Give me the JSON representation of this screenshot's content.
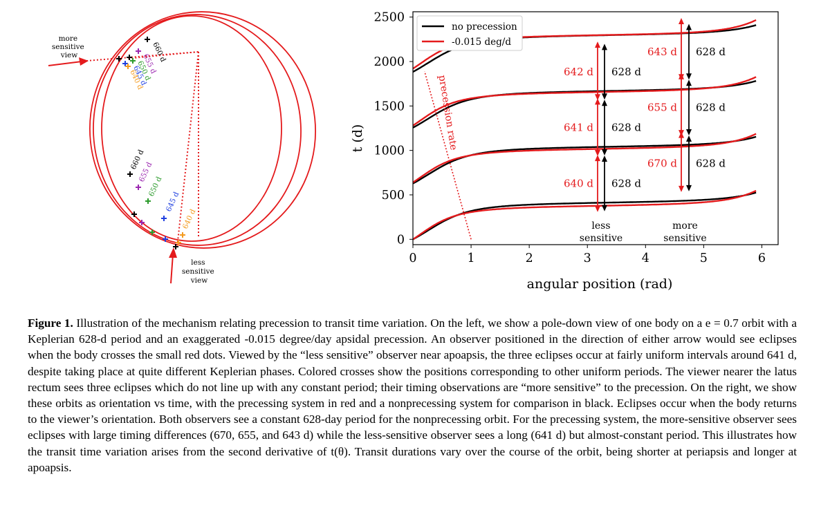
{
  "colors": {
    "red": "#e41a1c",
    "black": "#000000",
    "purple": "#9b27b0",
    "green": "#2b9b2b",
    "blue": "#1f3fe0",
    "orange": "#f39a1e"
  },
  "orbit_diagram": {
    "view_more": "more sensitive view",
    "view_more_lines": [
      "more",
      "sensitive",
      "view"
    ],
    "view_less_lines": [
      "less",
      "sensitive",
      "view"
    ],
    "upper_labels": [
      "660 d",
      "655 d",
      "650 d",
      "645 d",
      "640 d"
    ],
    "lower_labels": [
      "660 d",
      "655 d",
      "650 d",
      "645 d",
      "640 d"
    ]
  },
  "chart_data": {
    "type": "line",
    "title": "",
    "xlabel": "angular position (rad)",
    "ylabel": "t (d)",
    "xlim": [
      0,
      6.28
    ],
    "ylim": [
      -60,
      2560
    ],
    "xticks": [
      0,
      1,
      2,
      3,
      4,
      5,
      6
    ],
    "yticks": [
      0,
      500,
      1000,
      1500,
      2000,
      2500
    ],
    "legend": {
      "placement": "top-left",
      "entries": [
        {
          "name": "no precession",
          "color": "#000000"
        },
        {
          "name": "-0.015 deg/d",
          "color": "#e41a1c"
        }
      ]
    },
    "series": [
      {
        "name": "no precession",
        "color": "#000000",
        "period": 628,
        "orbit_offsets": [
          0,
          628,
          1256,
          1884
        ]
      },
      {
        "name": "-0.015 deg/d",
        "color": "#e41a1c",
        "period_base": 628,
        "precession_deg_per_day": -0.015,
        "orbit_offsets": [
          0,
          628,
          1256,
          1884
        ]
      }
    ],
    "precession_line": {
      "label": "precession rate",
      "from": [
        1.0,
        0
      ],
      "to": [
        0.2,
        1890
      ]
    },
    "less_sensitive": {
      "theta": 3.25,
      "label_lines": [
        "less",
        "sensitive"
      ],
      "red_intervals": [
        "640 d",
        "641 d",
        "642 d"
      ],
      "black_intervals": [
        "628 d",
        "628 d",
        "628 d"
      ]
    },
    "more_sensitive": {
      "theta": 4.6,
      "label_lines": [
        "more",
        "sensitive"
      ],
      "red_intervals": [
        "670 d",
        "655 d",
        "643 d"
      ],
      "black_intervals": [
        "628 d",
        "628 d",
        "628 d"
      ]
    }
  },
  "caption": {
    "label": "Figure 1.",
    "text": "Illustration of the mechanism relating precession to transit time variation. On the left, we show a pole-down view of one body on a e = 0.7 orbit with a Keplerian 628-d period and an exaggerated -0.015 degree/day apsidal precession. An observer positioned in the direction of either arrow would see eclipses when the body crosses the small red dots. Viewed by the “less sensitive” observer near apoapsis, the three eclipses occur at fairly uniform intervals around 641 d, despite taking place at quite different Keplerian phases. Colored crosses show the positions corresponding to other uniform periods. The viewer nearer the latus rectum sees three eclipses which do not line up with any constant period; their timing observations are “more sensitive” to the precession. On the right, we show these orbits as orientation vs time, with the precessing system in red and a nonprecessing system for comparison in black. Eclipses occur when the body returns to the viewer’s orientation. Both observers see a constant 628-day period for the nonprecessing orbit. For the precessing system, the more-sensitive observer sees eclipses with large timing differences (670, 655, and 643 d) while the less-sensitive observer sees a long (641 d) but almost-constant period. This illustrates how the transit time variation arises from the second derivative of t(θ). Transit durations vary over the course of the orbit, being shorter at periapsis and longer at apoapsis."
  }
}
